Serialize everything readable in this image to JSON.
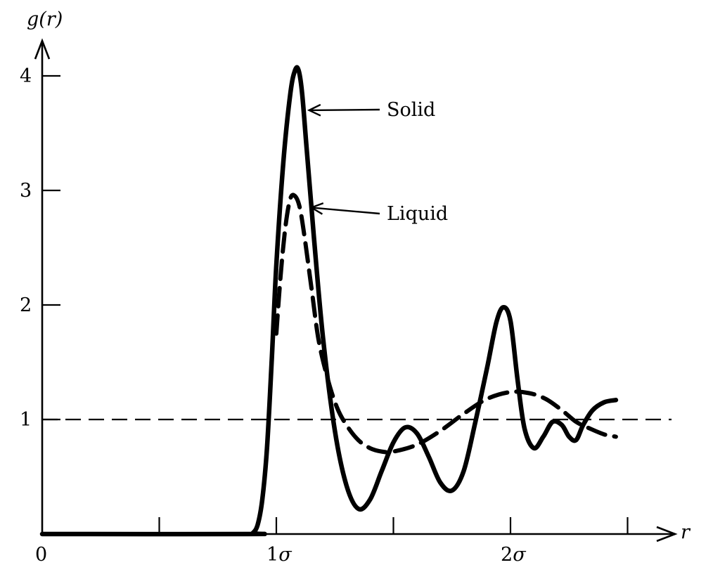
{
  "chart_data": {
    "type": "line",
    "ylabel": "g(r)",
    "xlabel": "r",
    "x_tick_labels": [
      {
        "x": 0,
        "label": "0"
      },
      {
        "x": 1.0,
        "label": "1σ"
      },
      {
        "x": 2.0,
        "label": "2σ"
      }
    ],
    "x_minor_ticks": [
      0.5,
      1.0,
      1.5,
      2.0,
      2.5
    ],
    "y_ticks": [
      1,
      2,
      3,
      4
    ],
    "y_tick_labels": [
      "1",
      "2",
      "3",
      "4"
    ],
    "xlim": [
      0,
      2.7
    ],
    "ylim": [
      0,
      4.4
    ],
    "reference_line": {
      "y": 1,
      "style": "dashed"
    },
    "series": [
      {
        "name": "Solid",
        "style": "solid",
        "x": [
          0,
          0.88,
          0.9,
          0.92,
          0.94,
          0.96,
          0.98,
          1.0,
          1.03,
          1.06,
          1.08,
          1.095,
          1.11,
          1.13,
          1.16,
          1.2,
          1.25,
          1.3,
          1.35,
          1.4,
          1.45,
          1.5,
          1.55,
          1.6,
          1.65,
          1.7,
          1.75,
          1.8,
          1.85,
          1.9,
          1.94,
          1.97,
          2.0,
          2.03,
          2.06,
          2.1,
          2.14,
          2.18,
          2.22,
          2.25,
          2.28,
          2.31,
          2.35,
          2.4,
          2.45
        ],
        "y": [
          0,
          0,
          0.01,
          0.08,
          0.3,
          0.75,
          1.5,
          2.35,
          3.25,
          3.85,
          4.05,
          4.05,
          3.85,
          3.35,
          2.6,
          1.7,
          0.9,
          0.42,
          0.22,
          0.3,
          0.55,
          0.8,
          0.93,
          0.88,
          0.68,
          0.45,
          0.38,
          0.55,
          0.98,
          1.45,
          1.85,
          1.98,
          1.86,
          1.35,
          0.92,
          0.75,
          0.85,
          0.98,
          0.95,
          0.85,
          0.82,
          0.95,
          1.08,
          1.15,
          1.17
        ]
      },
      {
        "name": "Liquid",
        "style": "dashed",
        "x": [
          1.0,
          1.02,
          1.04,
          1.06,
          1.08,
          1.1,
          1.12,
          1.15,
          1.18,
          1.22,
          1.26,
          1.3,
          1.35,
          1.4,
          1.45,
          1.5,
          1.6,
          1.7,
          1.8,
          1.9,
          2.0,
          2.08,
          2.15,
          2.22,
          2.28,
          2.34,
          2.4,
          2.45
        ],
        "y": [
          1.75,
          2.3,
          2.7,
          2.93,
          2.95,
          2.85,
          2.6,
          2.15,
          1.7,
          1.35,
          1.1,
          0.95,
          0.82,
          0.75,
          0.72,
          0.72,
          0.78,
          0.9,
          1.05,
          1.18,
          1.24,
          1.23,
          1.18,
          1.08,
          0.98,
          0.92,
          0.87,
          0.85
        ]
      }
    ],
    "annotations": [
      {
        "text": "Solid",
        "points_to": {
          "x": 1.14,
          "y": 3.7
        }
      },
      {
        "text": "Liquid",
        "points_to": {
          "x": 1.15,
          "y": 2.85
        }
      }
    ]
  }
}
